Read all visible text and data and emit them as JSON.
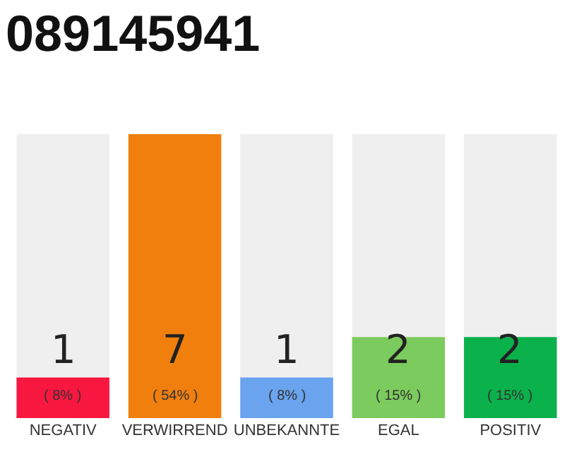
{
  "chart_data": {
    "type": "bar",
    "title": "089145941",
    "categories": [
      "NEGATIV",
      "VERWIRREND",
      "UNBEKANNTE",
      "EGAL",
      "POSITIV"
    ],
    "values": [
      1,
      7,
      1,
      2,
      2
    ],
    "colors": [
      "#f8173e",
      "#f07f0d",
      "#6aa3ee",
      "#7ccb5e",
      "#0bb14a"
    ],
    "data_labels": true,
    "annotations": [
      "( 8% )",
      "( 54% )",
      "( 8% )",
      "( 15% )",
      "( 15% )"
    ]
  }
}
